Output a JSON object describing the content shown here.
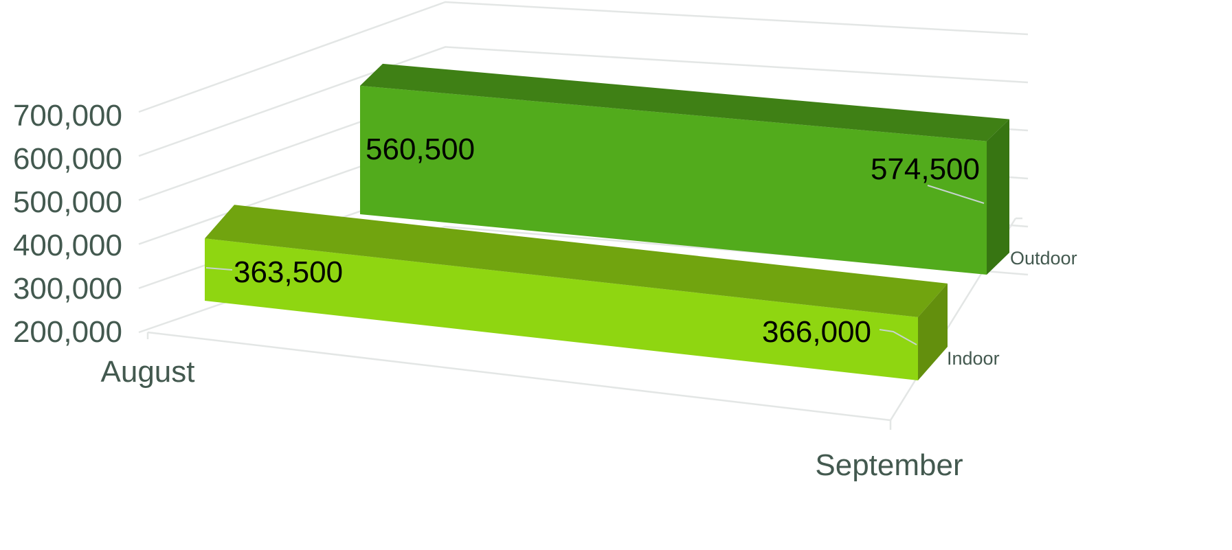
{
  "chart_data": {
    "type": "bar",
    "title": "",
    "xlabel": "",
    "ylabel": "",
    "categories": [
      "August",
      "September"
    ],
    "series": [
      {
        "name": "Indoor",
        "values": [
          363500,
          366000
        ],
        "labels": [
          "363,500",
          "366,000"
        ],
        "color": "#8fd611"
      },
      {
        "name": "Outdoor",
        "values": [
          560500,
          574500
        ],
        "labels": [
          "560,500",
          "574,500"
        ],
        "color": "#52ab1c"
      }
    ],
    "ylim": [
      200000,
      700000
    ],
    "y_ticks": [
      200000,
      300000,
      400000,
      500000,
      600000,
      700000
    ],
    "y_tick_labels": [
      "200,000",
      "300,000",
      "400,000",
      "500,000",
      "600,000",
      "700,000"
    ],
    "grid": true,
    "chart_style": "3d-line-ribbon",
    "legend": "none",
    "colors": {
      "axis_text": "#43594f",
      "gridline": "#e3e6e5",
      "indoor_front": "#8fd611",
      "indoor_top": "#71a40f",
      "indoor_side": "#638f0d",
      "outdoor_front": "#52ab1c",
      "outdoor_top": "#3f8015",
      "outdoor_side": "#377512"
    }
  }
}
